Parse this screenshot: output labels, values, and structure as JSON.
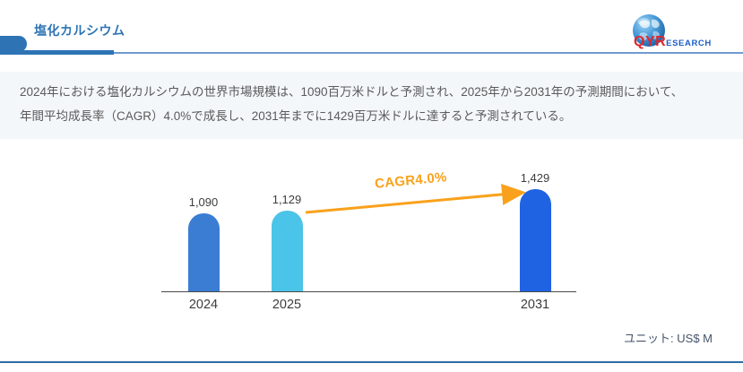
{
  "header": {
    "title": "塩化カルシウム",
    "logo": {
      "qyr": "QYR",
      "esearch": "ESEARCH"
    }
  },
  "description": {
    "line1": "2024年における塩化カルシウムの世界市場規模は、1090百万米ドルと予測され、2025年から2031年の予測期間において、",
    "line2": "年間平均成長率（CAGR）4.0%で成長し、2031年までに1429百万米ドルに達すると予測されている。"
  },
  "chart_data": {
    "type": "bar",
    "categories": [
      "2024",
      "2025",
      "2031"
    ],
    "values": [
      1090,
      1129,
      1429
    ],
    "value_labels": [
      "1,090",
      "1,129",
      "1,429"
    ],
    "bar_colors": [
      "#3a7dd3",
      "#4ac4e8",
      "#1f63e2"
    ],
    "ylim": [
      0,
      1500
    ],
    "grid": false,
    "annotation": "CAGR4.0%",
    "annotation_color": "#f9a11c",
    "unit_note": "ユニット: US$ M",
    "title": "",
    "xlabel": "",
    "ylabel": ""
  }
}
